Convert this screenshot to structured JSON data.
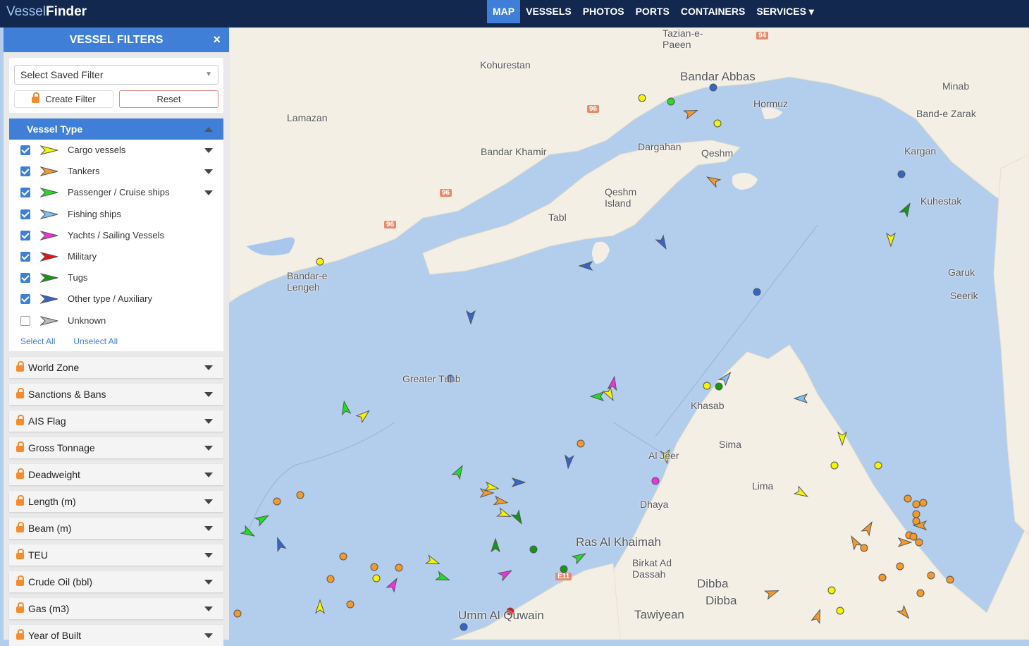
{
  "header": {
    "logo_a": "Vessel",
    "logo_b": "Finder",
    "nav": [
      "MAP",
      "VESSELS",
      "PHOTOS",
      "PORTS",
      "CONTAINERS",
      "SERVICES ▾"
    ],
    "active": "MAP"
  },
  "panel": {
    "title": "VESSEL FILTERS",
    "close": "×",
    "saved_filter_placeholder": "Select Saved Filter",
    "create_filter": "Create Filter",
    "reset": "Reset",
    "vessel_type": {
      "title": "Vessel Type",
      "items": [
        {
          "label": "Cargo vessels",
          "checked": true,
          "color": "#f5f500",
          "expand": true
        },
        {
          "label": "Tankers",
          "checked": true,
          "color": "#f59a2a",
          "expand": true
        },
        {
          "label": "Passenger / Cruise ships",
          "checked": true,
          "color": "#22dd22",
          "expand": true
        },
        {
          "label": "Fishing ships",
          "checked": true,
          "color": "#7cc0f5",
          "expand": false
        },
        {
          "label": "Yachts / Sailing Vessels",
          "checked": true,
          "color": "#ee33dd",
          "expand": false
        },
        {
          "label": "Military",
          "checked": true,
          "color": "#ee1111",
          "expand": false
        },
        {
          "label": "Tugs",
          "checked": true,
          "color": "#119911",
          "expand": false
        },
        {
          "label": "Other type / Auxiliary",
          "checked": true,
          "color": "#3366cc",
          "expand": false
        },
        {
          "label": "Unknown",
          "checked": false,
          "color": "#bbbbbb",
          "expand": false
        }
      ],
      "select_all": "Select All",
      "unselect_all": "Unselect All"
    },
    "sections": [
      "World Zone",
      "Sanctions & Bans",
      "AIS Flag",
      "Gross Tonnage",
      "Deadweight",
      "Length (m)",
      "Beam (m)",
      "TEU",
      "Crude Oil (bbl)",
      "Gas (m3)",
      "Year of Built"
    ]
  },
  "map": {
    "places": [
      "Tazian-e-\nPaeen",
      "Kohurestan",
      "Bandar Abbas",
      "Minab",
      "Lamazan",
      "Hormuz",
      "Band-e Zarak",
      "Bandar Khamir",
      "Dargahan",
      "Qeshm",
      "Kargan",
      "Qeshm\nIsland",
      "Tabl",
      "Kuhestak",
      "Bandar-e\nLengeh",
      "Garuk",
      "Seerik",
      "Greater Tunb",
      "Khasab",
      "Sima",
      "Al Jeer",
      "Lima",
      "Dhaya",
      "Ras Al Khaimah",
      "Birkat Ad\nDassah",
      "Dibba",
      "Dibba",
      "Umm Al Quwain",
      "Tawiyean"
    ],
    "roads": [
      "94",
      "96",
      "96",
      "96",
      "E11"
    ]
  }
}
